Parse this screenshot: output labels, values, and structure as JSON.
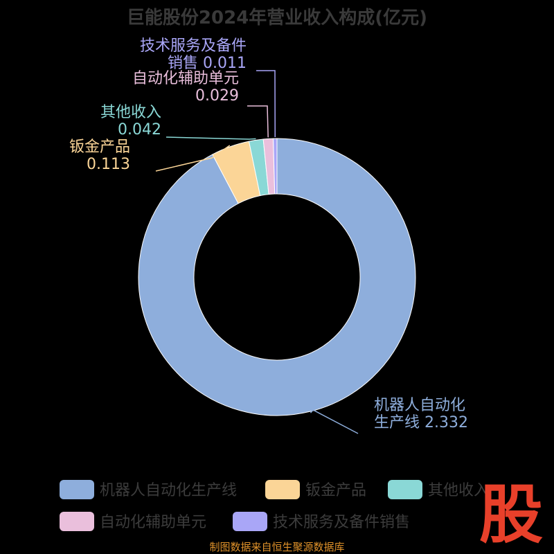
{
  "chart_data": {
    "type": "pie",
    "title": "巨能股份2024年营业收入构成(亿元)",
    "categories": [
      "机器人自动化生产线",
      "钣金产品",
      "其他收入",
      "自动化辅助单元",
      "技术服务及备件销售"
    ],
    "values": [
      2.332,
      0.113,
      0.042,
      0.029,
      0.011
    ],
    "value_labels": [
      "2.332",
      "0.113",
      "0.042",
      "0.029",
      "0.011"
    ],
    "colors": [
      "#8eaedc",
      "#fbd597",
      "#8ad8d6",
      "#eabfdc",
      "#a9a6f7"
    ],
    "inner_radius_ratio": 0.6,
    "legend_position": "bottom"
  },
  "footer": {
    "source": "制图数据来自恒生聚源数据库",
    "logo_text": "股"
  }
}
